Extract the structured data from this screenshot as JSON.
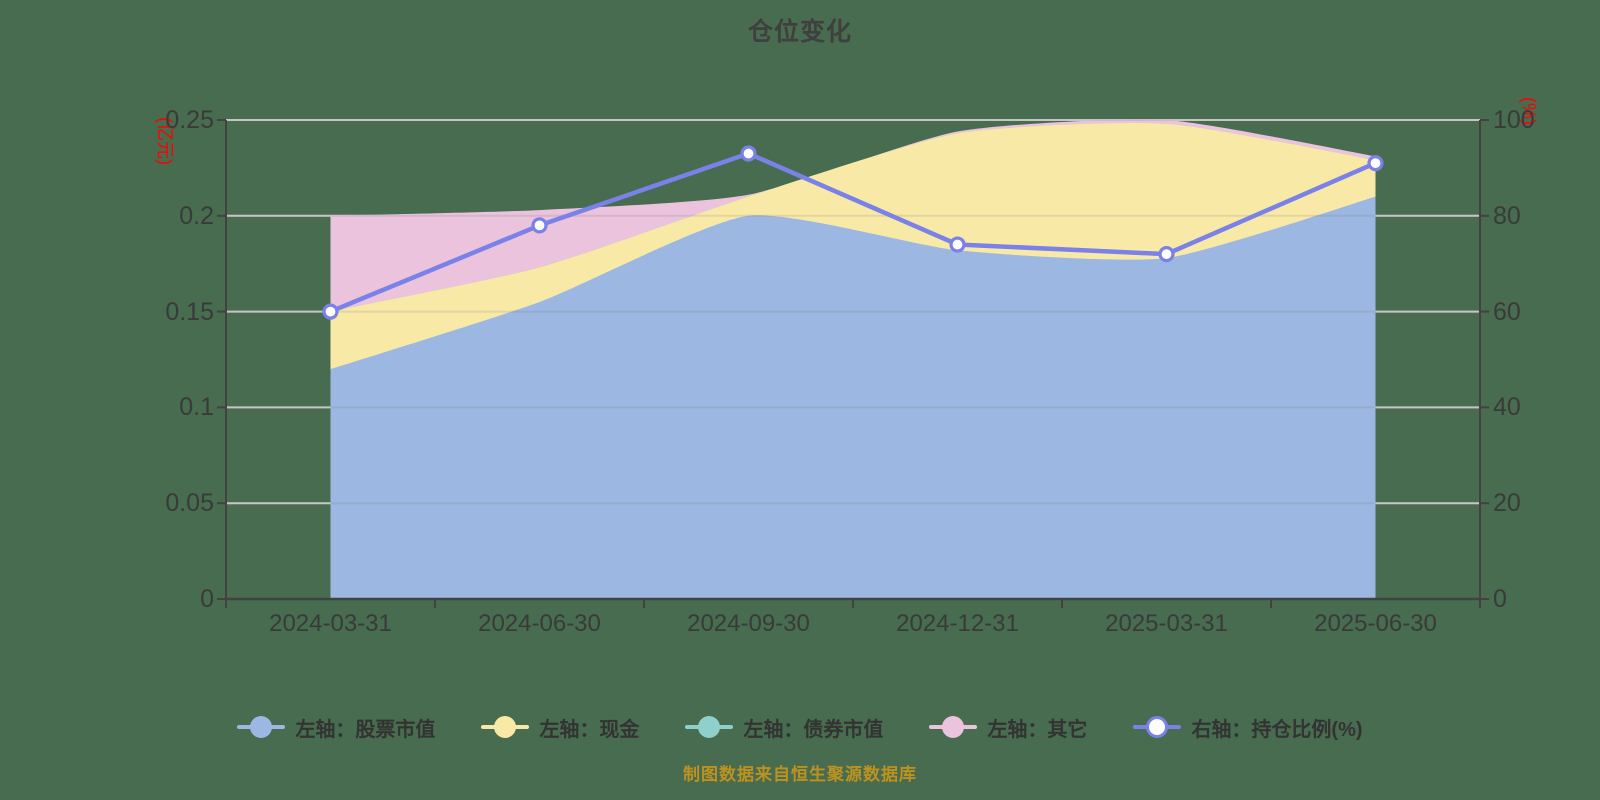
{
  "title": "仓位变化",
  "caption": "制图数据来自恒生聚源数据库",
  "colors": {
    "background": "#486C4F",
    "stock": "#9CB8E2",
    "cash": "#F9E9A6",
    "bond": "#8FD0CB",
    "other": "#EBC3DD",
    "ratio": "#7A81E8",
    "marker_fill": "#FFFFFF",
    "grid": "#D6D6D6",
    "axis": "#424242",
    "tick_label": "#3A3A3A",
    "unit_label": "#FF0000",
    "title_color": "#3F3F3F",
    "caption_color": "#BD921F"
  },
  "left_axis": {
    "unit": "(亿元)",
    "ticks": [
      0,
      0.05,
      0.1,
      0.15,
      0.2,
      0.25
    ]
  },
  "right_axis": {
    "unit": "(%)",
    "ticks": [
      0,
      20,
      40,
      60,
      80,
      100
    ]
  },
  "legend": {
    "items": [
      {
        "label": "左轴：股票市值",
        "color_key": "stock",
        "hollow": false
      },
      {
        "label": "左轴：现金",
        "color_key": "cash",
        "hollow": false
      },
      {
        "label": "左轴：债券市值",
        "color_key": "bond",
        "hollow": false
      },
      {
        "label": "左轴：其它",
        "color_key": "other",
        "hollow": false
      },
      {
        "label": "右轴：持仓比例(%)",
        "color_key": "ratio",
        "hollow": true
      }
    ]
  },
  "chart_data": {
    "type": "area",
    "title": "仓位变化",
    "categories": [
      "2024-03-31",
      "2024-06-30",
      "2024-09-30",
      "2024-12-31",
      "2025-03-31",
      "2025-06-30"
    ],
    "series": [
      {
        "name": "左轴：股票市值",
        "type": "stacked-area",
        "axis": "left",
        "color_key": "stock",
        "values": [
          0.12,
          0.155,
          0.2,
          0.182,
          0.178,
          0.21
        ]
      },
      {
        "name": "左轴：现金",
        "type": "stacked-area",
        "axis": "left",
        "color_key": "cash",
        "values": [
          0.03,
          0.018,
          0.01,
          0.061,
          0.07,
          0.019
        ]
      },
      {
        "name": "左轴：债券市值",
        "type": "stacked-area",
        "axis": "left",
        "color_key": "bond",
        "values": [
          0,
          0,
          0,
          0,
          0,
          0
        ]
      },
      {
        "name": "左轴：其它",
        "type": "stacked-area",
        "axis": "left",
        "color_key": "other",
        "values": [
          0.05,
          0.03,
          0.001,
          0.001,
          0.002,
          0.002
        ]
      },
      {
        "name": "右轴：持仓比例(%)",
        "type": "line",
        "axis": "right",
        "color_key": "ratio",
        "values": [
          60,
          78,
          93,
          74,
          72,
          91
        ]
      }
    ],
    "left_ylabel": "(亿元)",
    "right_ylabel": "(%)",
    "left_ylim": [
      0,
      0.25
    ],
    "right_ylim": [
      0,
      100
    ],
    "grid": true,
    "legend_position": "bottom"
  }
}
